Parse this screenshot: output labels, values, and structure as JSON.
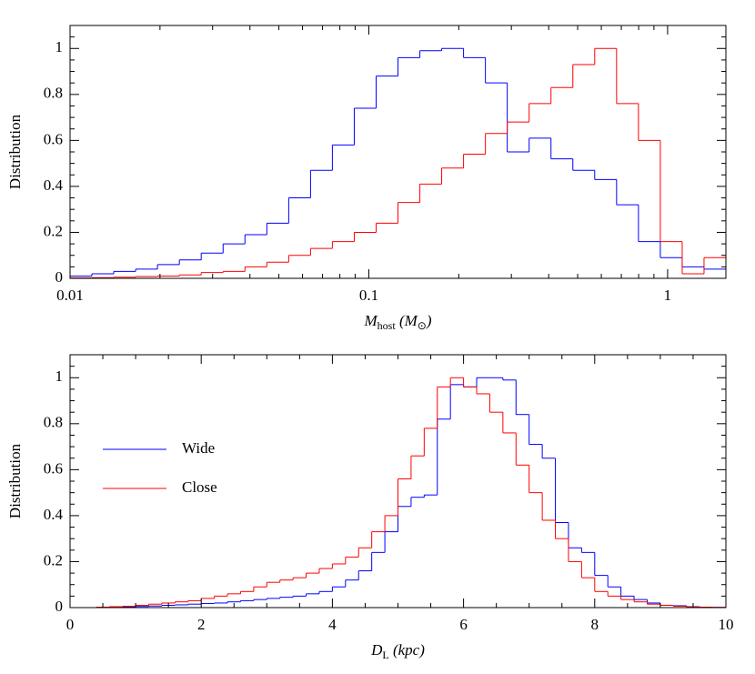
{
  "chart_data": [
    {
      "type": "histogram",
      "ylabel": "Distribution",
      "xlabel": [
        {
          "text": "M",
          "sub": "host"
        },
        {
          "text": " (M",
          "sub": "⊙"
        },
        {
          "text": ")"
        }
      ],
      "xscale": "log",
      "xlim": [
        0.01,
        1.567
      ],
      "xticks": [
        0.01,
        0.1,
        1
      ],
      "xminorticks": [
        0.02,
        0.03,
        0.04,
        0.05,
        0.06,
        0.07,
        0.08,
        0.09,
        0.2,
        0.3,
        0.4,
        0.5,
        0.6,
        0.7,
        0.8,
        0.9
      ],
      "ylim": [
        0,
        1.1
      ],
      "yticks": [
        0,
        0.2,
        0.4,
        0.6,
        0.8,
        1
      ],
      "yminorticks": [
        0.05,
        0.1,
        0.15,
        0.25,
        0.3,
        0.35,
        0.45,
        0.5,
        0.55,
        0.65,
        0.7,
        0.75,
        0.85,
        0.9,
        0.95,
        1.05
      ],
      "bins": [
        0.01,
        0.01183,
        0.014,
        0.01658,
        0.01962,
        0.02322,
        0.02748,
        0.03253,
        0.0385,
        0.04557,
        0.05393,
        0.06382,
        0.07551,
        0.08938,
        0.1058,
        0.1252,
        0.1482,
        0.1753,
        0.2075,
        0.2456,
        0.2906,
        0.344,
        0.4071,
        0.4818,
        0.5702,
        0.6749,
        0.7988,
        0.9454,
        1.119,
        1.324,
        1.567
      ],
      "series": [
        {
          "name": "Wide",
          "color": "#0000ff",
          "values": [
            0.01,
            0.02,
            0.03,
            0.04,
            0.06,
            0.08,
            0.11,
            0.15,
            0.19,
            0.24,
            0.35,
            0.47,
            0.58,
            0.74,
            0.88,
            0.96,
            0.99,
            1.0,
            0.96,
            0.85,
            0.55,
            0.61,
            0.52,
            0.47,
            0.43,
            0.32,
            0.16,
            0.09,
            0.05,
            0.04
          ]
        },
        {
          "name": "Close",
          "color": "#ff0000",
          "values": [
            0.002,
            0.003,
            0.005,
            0.008,
            0.01,
            0.015,
            0.025,
            0.03,
            0.05,
            0.07,
            0.1,
            0.13,
            0.16,
            0.2,
            0.24,
            0.33,
            0.41,
            0.48,
            0.54,
            0.63,
            0.68,
            0.76,
            0.83,
            0.93,
            1.0,
            0.76,
            0.6,
            0.16,
            0.02,
            0.09
          ]
        }
      ]
    },
    {
      "type": "histogram",
      "ylabel": "Distribution",
      "xlabel": [
        {
          "text": "D",
          "sub": "L"
        },
        {
          "text": " (kpc)"
        }
      ],
      "xlim": [
        0,
        10
      ],
      "xticks": [
        0,
        2,
        4,
        6,
        8,
        10
      ],
      "xminorticks": [
        0.5,
        1,
        1.5,
        2.5,
        3,
        3.5,
        4.5,
        5,
        5.5,
        6.5,
        7,
        7.5,
        8.5,
        9,
        9.5
      ],
      "ylim": [
        0,
        1.1
      ],
      "yticks": [
        0,
        0.2,
        0.4,
        0.6,
        0.8,
        1
      ],
      "yminorticks": [
        0.05,
        0.1,
        0.15,
        0.25,
        0.3,
        0.35,
        0.45,
        0.5,
        0.55,
        0.65,
        0.7,
        0.75,
        0.85,
        0.9,
        0.95,
        1.05
      ],
      "legend": "upper left",
      "bins": [
        0,
        0.2,
        0.4,
        0.6,
        0.8,
        1,
        1.2,
        1.4,
        1.6,
        1.8,
        2,
        2.2,
        2.4,
        2.6,
        2.8,
        3,
        3.2,
        3.4,
        3.6,
        3.8,
        4,
        4.2,
        4.4,
        4.6,
        4.8,
        5,
        5.2,
        5.4,
        5.6,
        5.8,
        6,
        6.2,
        6.4,
        6.6,
        6.8,
        7,
        7.2,
        7.4,
        7.6,
        7.8,
        8,
        8.2,
        8.4,
        8.6,
        8.8,
        9,
        9.2,
        9.4,
        9.6,
        9.8,
        10
      ],
      "series": [
        {
          "name": "Wide",
          "color": "#0000ff",
          "values": [
            0,
            0,
            0.001,
            0.002,
            0.003,
            0.005,
            0.007,
            0.01,
            0.012,
            0.015,
            0.018,
            0.02,
            0.025,
            0.03,
            0.035,
            0.04,
            0.045,
            0.05,
            0.06,
            0.07,
            0.09,
            0.12,
            0.16,
            0.24,
            0.33,
            0.44,
            0.48,
            0.49,
            0.82,
            0.97,
            0.96,
            1.0,
            1.0,
            0.99,
            0.84,
            0.71,
            0.65,
            0.37,
            0.26,
            0.24,
            0.14,
            0.09,
            0.05,
            0.035,
            0.02,
            0.01,
            0.008,
            0.004,
            0.002,
            0.001
          ]
        },
        {
          "name": "Close",
          "color": "#ff0000",
          "values": [
            0,
            0,
            0.002,
            0.004,
            0.006,
            0.01,
            0.015,
            0.02,
            0.025,
            0.03,
            0.04,
            0.05,
            0.06,
            0.07,
            0.09,
            0.11,
            0.12,
            0.13,
            0.15,
            0.17,
            0.19,
            0.22,
            0.26,
            0.33,
            0.4,
            0.56,
            0.66,
            0.78,
            0.96,
            1.0,
            0.96,
            0.93,
            0.85,
            0.76,
            0.62,
            0.5,
            0.38,
            0.3,
            0.2,
            0.13,
            0.07,
            0.05,
            0.035,
            0.025,
            0.015,
            0.01,
            0.006,
            0.003,
            0.002,
            0.001
          ]
        }
      ]
    }
  ]
}
